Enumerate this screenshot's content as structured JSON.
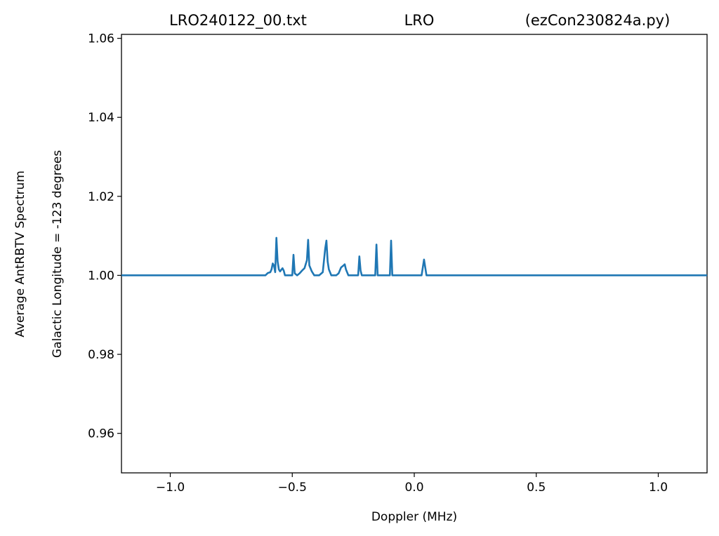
{
  "chart_data": {
    "type": "line",
    "title_left": "LRO240122_00.txt",
    "title_center": "LRO",
    "title_right": "(ezCon230824a.py)",
    "xlabel": "Doppler (MHz)",
    "ylabel_line1": "Average AntRBTV Spectrum",
    "ylabel_line2": "Galactic Longitude = -123 degrees",
    "xlim": [
      -1.2,
      1.2
    ],
    "ylim": [
      0.95,
      1.061
    ],
    "xticks": [
      -1.0,
      -0.5,
      0.0,
      0.5,
      1.0
    ],
    "xtick_labels": [
      "−1.0",
      "−0.5",
      "0.0",
      "0.5",
      "1.0"
    ],
    "yticks": [
      0.96,
      0.98,
      1.0,
      1.02,
      1.04,
      1.06
    ],
    "ytick_labels": [
      "0.96",
      "0.98",
      "1.00",
      "1.02",
      "1.04",
      "1.06"
    ],
    "grid": false,
    "series": [
      {
        "color": "#1f77b4",
        "x": [
          -1.2,
          -0.61,
          -0.6,
          -0.59,
          -0.585,
          -0.58,
          -0.575,
          -0.57,
          -0.565,
          -0.56,
          -0.555,
          -0.55,
          -0.54,
          -0.535,
          -0.53,
          -0.5,
          -0.495,
          -0.49,
          -0.48,
          -0.47,
          -0.46,
          -0.45,
          -0.44,
          -0.435,
          -0.43,
          -0.42,
          -0.41,
          -0.4,
          -0.39,
          -0.375,
          -0.365,
          -0.36,
          -0.355,
          -0.35,
          -0.34,
          -0.33,
          -0.32,
          -0.31,
          -0.3,
          -0.29,
          -0.285,
          -0.28,
          -0.27,
          -0.26,
          -0.25,
          -0.24,
          -0.23,
          -0.225,
          -0.22,
          -0.215,
          -0.2,
          -0.19,
          -0.18,
          -0.17,
          -0.16,
          -0.155,
          -0.15,
          -0.14,
          -0.13,
          -0.12,
          -0.11,
          -0.1,
          -0.095,
          -0.09,
          -0.08,
          -0.07,
          -0.06,
          -0.05,
          -0.04,
          -0.03,
          -0.02,
          -0.01,
          0.0,
          0.01,
          0.02,
          0.03,
          0.04,
          0.05,
          0.06,
          0.07,
          0.08,
          0.09,
          0.1,
          0.11,
          0.12,
          0.13,
          0.14,
          0.15,
          0.16,
          0.17,
          0.18,
          0.185,
          0.19,
          0.2,
          0.21,
          0.22,
          0.23,
          0.24,
          0.25,
          0.26,
          1.2
        ],
        "y": [
          1.0,
          1.0,
          1.0006,
          1.0008,
          1.0015,
          1.003,
          1.0025,
          1.0008,
          1.0095,
          1.0035,
          1.0015,
          1.001,
          1.0018,
          1.0012,
          1.0,
          1.0,
          1.0052,
          1.0005,
          1.0,
          1.0005,
          1.0012,
          1.0018,
          1.0038,
          1.009,
          1.0025,
          1.001,
          1.0,
          1.0,
          1.0,
          1.0008,
          1.0068,
          1.0088,
          1.0035,
          1.0015,
          1.0,
          1.0,
          1.0,
          1.0005,
          1.002,
          1.0025,
          1.0028,
          1.0015,
          1.0,
          1.0,
          1.0,
          1.0,
          1.0,
          1.0048,
          1.0012,
          1.0,
          1.0,
          1.0,
          1.0,
          1.0,
          1.0,
          1.0078,
          1.0,
          1.0,
          1.0,
          1.0,
          1.0,
          1.0,
          1.0088,
          1.0,
          1.0,
          1.0,
          1.0,
          1.0,
          1.0,
          1.0,
          1.0,
          1.0,
          1.0,
          1.0,
          1.0,
          1.0,
          1.004,
          1.0,
          1.0,
          1.0,
          1.0,
          1.0,
          1.0,
          1.0,
          1.0,
          1.0,
          1.0,
          1.0,
          1.0,
          1.0,
          1.0,
          1.0,
          1.0,
          1.0,
          1.0,
          1.0,
          1.0,
          1.0,
          1.0,
          1.0,
          1.0
        ]
      }
    ]
  }
}
